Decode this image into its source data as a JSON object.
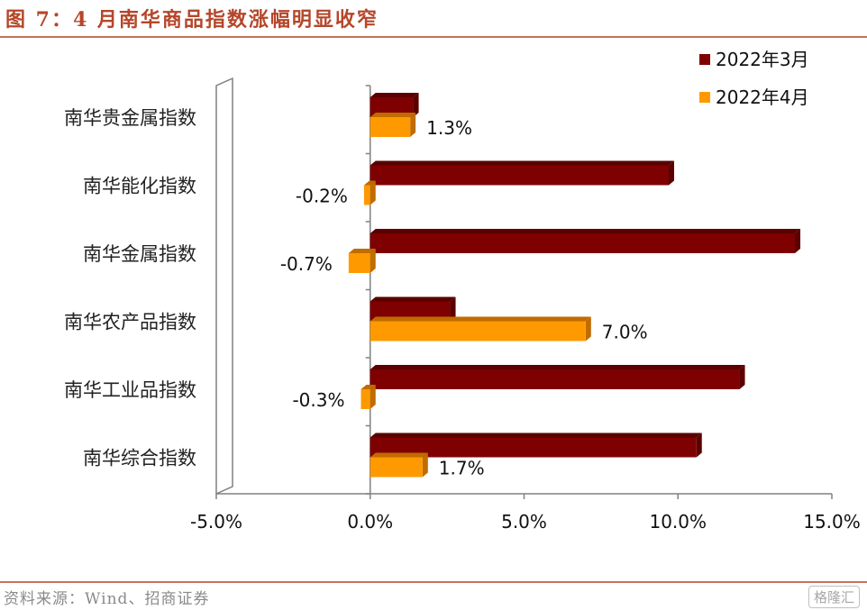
{
  "header": {
    "title": "图 7：4 月南华商品指数涨幅明显收窄"
  },
  "footer": {
    "source": "资料来源：Wind、招商证券",
    "watermark": "格隆汇"
  },
  "colors": {
    "series1": "#7f0000",
    "series1_side": "#5a0000",
    "series2": "#ff9900",
    "series2_side": "#c06c00",
    "title": "#b5462a",
    "axis": "#808080"
  },
  "chart_data": {
    "type": "bar",
    "orientation": "horizontal",
    "title": "",
    "xlabel": "",
    "ylabel": "",
    "categories": [
      "南华贵金属指数",
      "南华能化指数",
      "南华金属指数",
      "南华农产品指数",
      "南华工业品指数",
      "南华综合指数"
    ],
    "series": [
      {
        "name": "2022年3月",
        "values": [
          1.4,
          9.7,
          13.8,
          2.6,
          12.0,
          10.6
        ]
      },
      {
        "name": "2022年4月",
        "values": [
          1.3,
          -0.2,
          -0.7,
          7.0,
          -0.3,
          1.7
        ]
      }
    ],
    "data_labels": [
      "1.3%",
      "-0.2%",
      "-0.7%",
      "7.0%",
      "-0.3%",
      "1.7%"
    ],
    "xlim": [
      -5,
      15
    ],
    "xticks": [
      -5,
      0,
      5,
      10,
      15
    ],
    "xtick_labels": [
      "-5.0%",
      "0.0%",
      "5.0%",
      "10.0%",
      "15.0%"
    ],
    "grid": false,
    "legend": "top-right"
  }
}
